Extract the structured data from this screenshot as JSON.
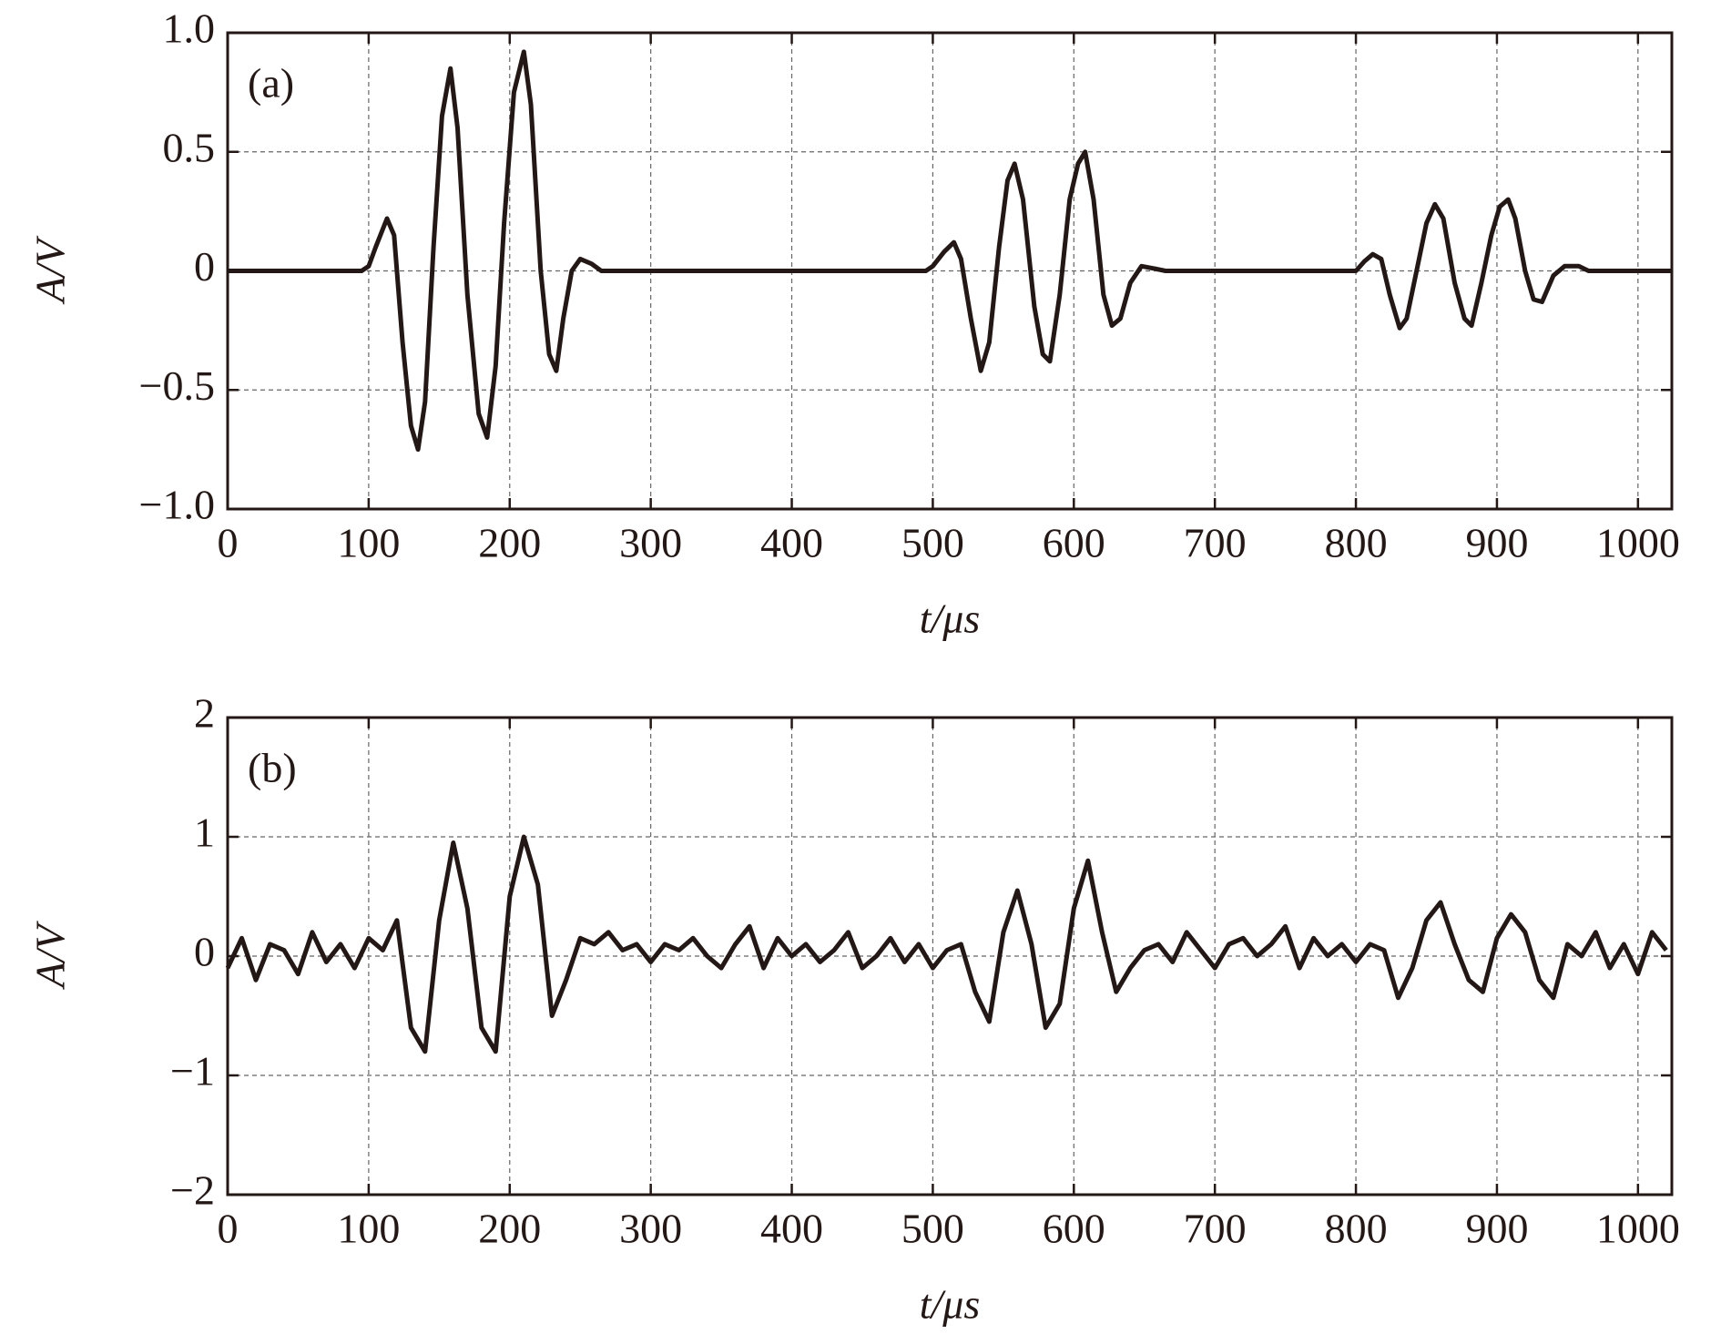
{
  "chart_data": [
    {
      "type": "line",
      "annotation": "(a)",
      "x_label": "t/μs",
      "y_label": "A/V",
      "xlim": [
        0,
        1024
      ],
      "xticks": [
        0,
        100,
        200,
        300,
        400,
        500,
        600,
        700,
        800,
        900,
        1000
      ],
      "ylim": [
        -1,
        1
      ],
      "yticks": [
        {
          "value": -1,
          "label": "−1.0"
        },
        {
          "value": -0.5,
          "label": "−0.5"
        },
        0,
        {
          "value": 0.5,
          "label": "0.5"
        },
        {
          "value": 1,
          "label": "1.0"
        }
      ],
      "grid": true,
      "series": [
        {
          "color": "#231815",
          "x": [
            0,
            95,
            100,
            105,
            113,
            118,
            124,
            130,
            135,
            140,
            146,
            152,
            158,
            163,
            170,
            178,
            184,
            190,
            196,
            203,
            210,
            215,
            222,
            228,
            233,
            238,
            244,
            250,
            258,
            265,
            495,
            500,
            508,
            515,
            520,
            527,
            534,
            540,
            547,
            553,
            558,
            564,
            572,
            578,
            583,
            590,
            597,
            603,
            608,
            614,
            621,
            627,
            633,
            640,
            648,
            657,
            665,
            795,
            800,
            806,
            812,
            818,
            824,
            831,
            836,
            843,
            850,
            856,
            862,
            870,
            877,
            882,
            889,
            896,
            902,
            908,
            913,
            920,
            926,
            932,
            940,
            948,
            958,
            965,
            1024
          ],
          "values": [
            0,
            0,
            0.02,
            0.1,
            0.22,
            0.15,
            -0.3,
            -0.65,
            -0.75,
            -0.55,
            0.1,
            0.65,
            0.85,
            0.6,
            -0.1,
            -0.6,
            -0.7,
            -0.4,
            0.2,
            0.75,
            0.92,
            0.7,
            0.0,
            -0.35,
            -0.42,
            -0.2,
            0.0,
            0.05,
            0.03,
            0,
            0,
            0.02,
            0.08,
            0.12,
            0.05,
            -0.2,
            -0.42,
            -0.3,
            0.1,
            0.38,
            0.45,
            0.3,
            -0.15,
            -0.35,
            -0.38,
            -0.1,
            0.3,
            0.45,
            0.5,
            0.3,
            -0.1,
            -0.23,
            -0.2,
            -0.05,
            0.02,
            0.01,
            0,
            0,
            0,
            0.04,
            0.07,
            0.05,
            -0.1,
            -0.24,
            -0.2,
            0.0,
            0.2,
            0.28,
            0.22,
            -0.05,
            -0.2,
            -0.23,
            -0.05,
            0.15,
            0.27,
            0.3,
            0.22,
            0.0,
            -0.12,
            -0.13,
            -0.02,
            0.02,
            0.02,
            0,
            0
          ]
        }
      ]
    },
    {
      "type": "line",
      "annotation": "(b)",
      "x_label": "t/μs",
      "y_label": "A/V",
      "xlim": [
        0,
        1024
      ],
      "xticks": [
        0,
        100,
        200,
        300,
        400,
        500,
        600,
        700,
        800,
        900,
        1000
      ],
      "ylim": [
        -2,
        2
      ],
      "yticks": [
        {
          "value": -2,
          "label": "−2"
        },
        {
          "value": -1,
          "label": "−1"
        },
        0,
        1,
        2
      ],
      "grid": true,
      "series": [
        {
          "color": "#231815",
          "x": [
            0,
            10,
            20,
            30,
            40,
            50,
            60,
            70,
            80,
            90,
            100,
            110,
            120,
            130,
            140,
            150,
            160,
            170,
            180,
            190,
            200,
            210,
            220,
            230,
            240,
            250,
            260,
            270,
            280,
            290,
            300,
            310,
            320,
            330,
            340,
            350,
            360,
            370,
            380,
            390,
            400,
            410,
            420,
            430,
            440,
            450,
            460,
            470,
            480,
            490,
            500,
            510,
            520,
            530,
            540,
            550,
            560,
            570,
            580,
            590,
            600,
            610,
            620,
            630,
            640,
            650,
            660,
            670,
            680,
            690,
            700,
            710,
            720,
            730,
            740,
            750,
            760,
            770,
            780,
            790,
            800,
            810,
            820,
            830,
            840,
            850,
            860,
            870,
            880,
            890,
            900,
            910,
            920,
            930,
            940,
            950,
            960,
            970,
            980,
            990,
            1000,
            1010,
            1020
          ],
          "values": [
            -0.1,
            0.15,
            -0.2,
            0.1,
            0.05,
            -0.15,
            0.2,
            -0.05,
            0.1,
            -0.1,
            0.15,
            0.05,
            0.3,
            -0.6,
            -0.8,
            0.3,
            0.95,
            0.4,
            -0.6,
            -0.8,
            0.5,
            1.0,
            0.6,
            -0.5,
            -0.2,
            0.15,
            0.1,
            0.2,
            0.05,
            0.1,
            -0.05,
            0.1,
            0.05,
            0.15,
            0.0,
            -0.1,
            0.1,
            0.25,
            -0.1,
            0.15,
            0.0,
            0.1,
            -0.05,
            0.05,
            0.2,
            -0.1,
            0.0,
            0.15,
            -0.05,
            0.1,
            -0.1,
            0.05,
            0.1,
            -0.3,
            -0.55,
            0.2,
            0.55,
            0.1,
            -0.6,
            -0.4,
            0.4,
            0.8,
            0.2,
            -0.3,
            -0.1,
            0.05,
            0.1,
            -0.05,
            0.2,
            0.05,
            -0.1,
            0.1,
            0.15,
            0.0,
            0.1,
            0.25,
            -0.1,
            0.15,
            0.0,
            0.1,
            -0.05,
            0.1,
            0.05,
            -0.35,
            -0.1,
            0.3,
            0.45,
            0.1,
            -0.2,
            -0.3,
            0.15,
            0.35,
            0.2,
            -0.2,
            -0.35,
            0.1,
            0.0,
            0.2,
            -0.1,
            0.1,
            -0.15,
            0.2,
            0.05
          ]
        }
      ]
    }
  ]
}
